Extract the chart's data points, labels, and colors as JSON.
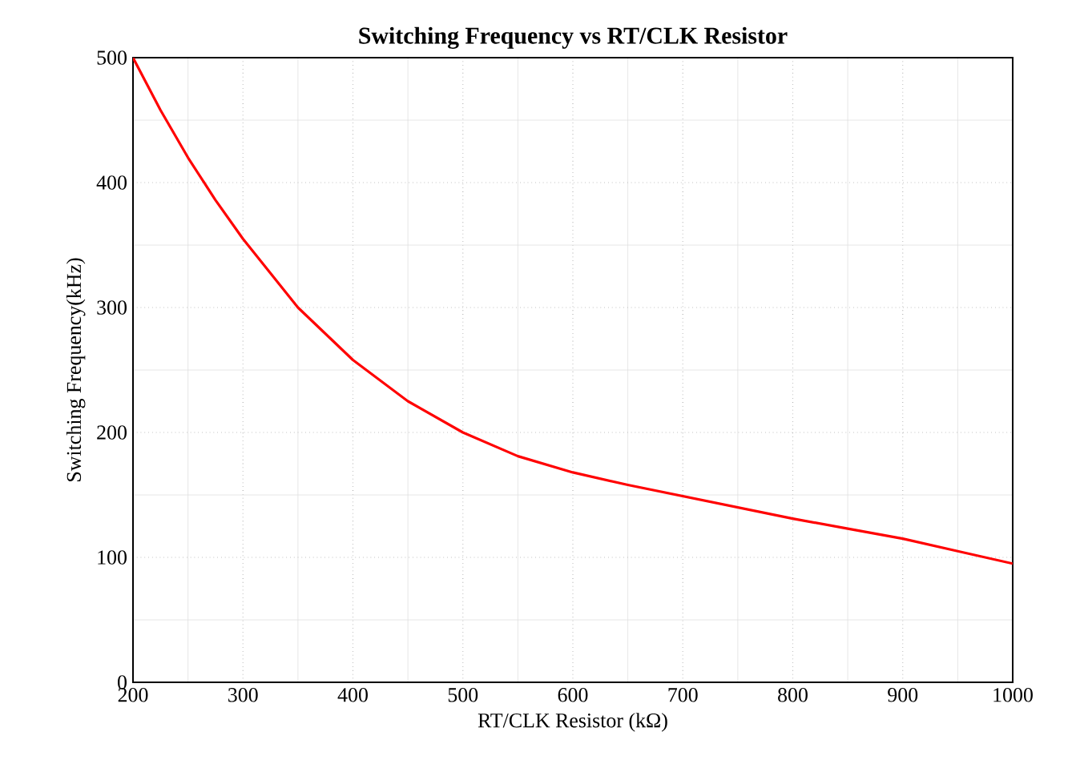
{
  "chart_data": {
    "type": "line",
    "title": "Switching Frequency vs RT/CLK Resistor",
    "xlabel": "RT/CLK Resistor (kΩ)",
    "ylabel": "Switching Frequency(kHz)",
    "x": [
      200,
      225,
      250,
      275,
      300,
      350,
      400,
      450,
      500,
      550,
      600,
      650,
      700,
      750,
      800,
      850,
      900,
      950,
      1000
    ],
    "series": [
      {
        "color": "#ff0000",
        "values": [
          500,
          458,
          420,
          386,
          355,
          300,
          258,
          225,
          200,
          181,
          168,
          158,
          149,
          140,
          131,
          123,
          115,
          105,
          95
        ]
      }
    ],
    "xlim": [
      200,
      1000
    ],
    "ylim": [
      0,
      500
    ],
    "xticks": [
      200,
      300,
      400,
      500,
      600,
      700,
      800,
      900,
      1000
    ],
    "yticks": [
      0,
      100,
      200,
      300,
      400,
      500
    ],
    "grid": true,
    "marker": "none",
    "line_style": "solid"
  }
}
